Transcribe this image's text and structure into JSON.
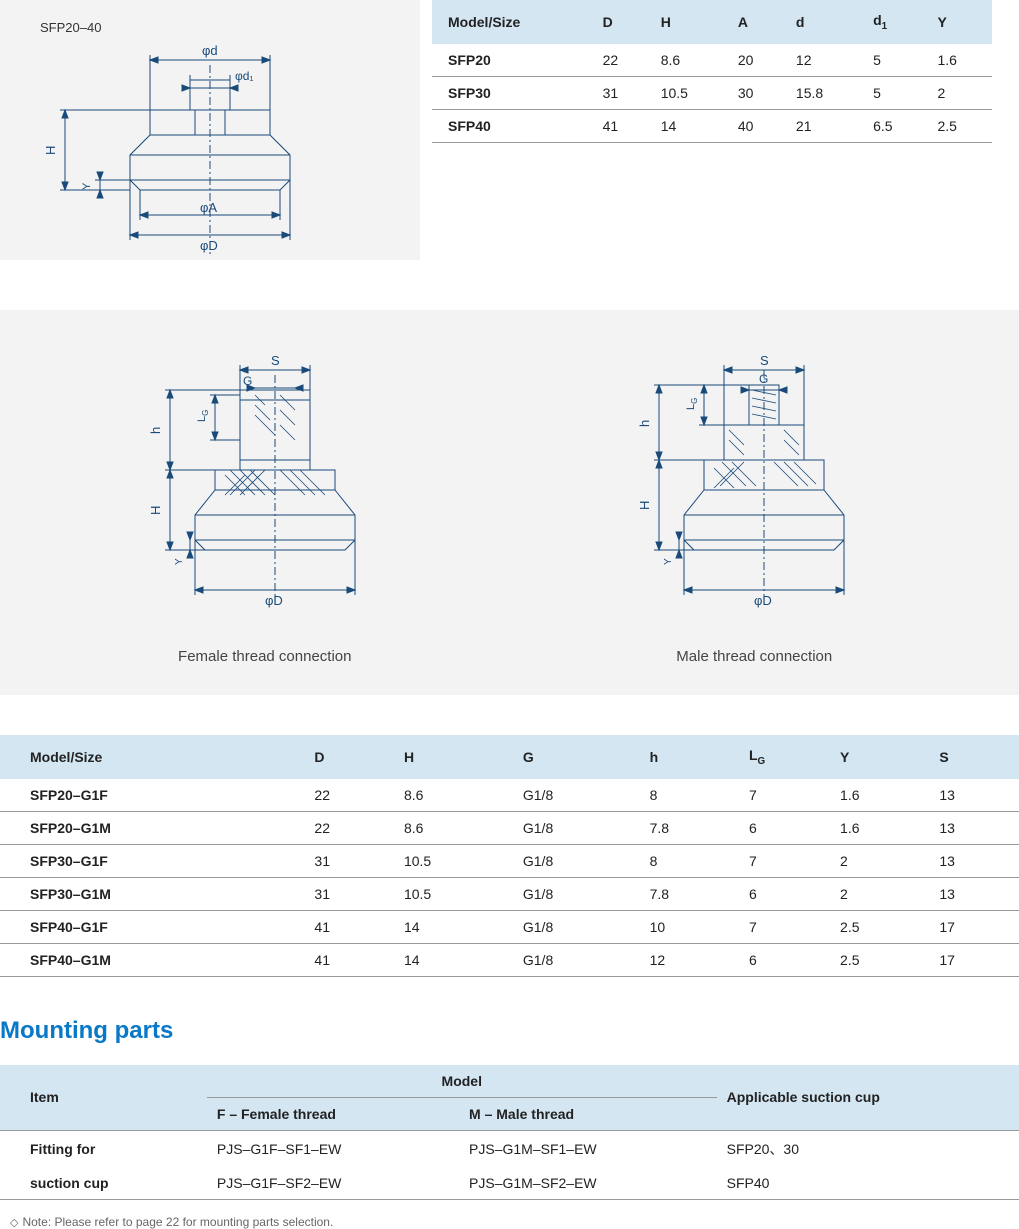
{
  "diagram1": {
    "label": "SFP20–40",
    "dims": {
      "d": "φd",
      "d1": "φd₁",
      "H": "H",
      "Y": "Y",
      "A": "φA",
      "D": "φD"
    },
    "stroke": "#194a7a",
    "bg": "#f3f3f3"
  },
  "table1": {
    "type": "table",
    "header_bg": "#d3e6f2",
    "columns": [
      "Model/Size",
      "D",
      "H",
      "A",
      "d",
      "d₁",
      "Y"
    ],
    "rows": [
      [
        "SFP20",
        "22",
        "8.6",
        "20",
        "12",
        "5",
        "1.6"
      ],
      [
        "SFP30",
        "31",
        "10.5",
        "30",
        "15.8",
        "5",
        "2"
      ],
      [
        "SFP40",
        "41",
        "14",
        "40",
        "21",
        "6.5",
        "2.5"
      ]
    ]
  },
  "diagram2": {
    "female_caption": "Female thread connection",
    "male_caption": "Male thread connection",
    "dims": {
      "S": "S",
      "G": "G",
      "LG": "L",
      "LGsub": "G",
      "h": "h",
      "H": "H",
      "Y": "Y",
      "D": "φD"
    },
    "stroke": "#194a7a"
  },
  "table2": {
    "type": "table",
    "header_bg": "#d3e6f2",
    "columns": [
      "Model/Size",
      "D",
      "H",
      "G",
      "h",
      "L_G",
      "Y",
      "S"
    ],
    "rows": [
      [
        "SFP20–G1F",
        "22",
        "8.6",
        "G1/8",
        "8",
        "7",
        "1.6",
        "13"
      ],
      [
        "SFP20–G1M",
        "22",
        "8.6",
        "G1/8",
        "7.8",
        "6",
        "1.6",
        "13"
      ],
      [
        "SFP30–G1F",
        "31",
        "10.5",
        "G1/8",
        "8",
        "7",
        "2",
        "13"
      ],
      [
        "SFP30–G1M",
        " 31",
        "10.5",
        "G1/8",
        "7.8",
        "6",
        "2",
        "13"
      ],
      [
        "SFP40–G1F",
        "41",
        "14",
        "G1/8",
        "10",
        "7",
        "2.5",
        "17"
      ],
      [
        "SFP40–G1M",
        "41",
        "14",
        "G1/8",
        "12",
        "6",
        "2.5",
        "17"
      ]
    ]
  },
  "section_title": "Mounting parts",
  "table3": {
    "type": "table",
    "header_bg": "#d3e6f2",
    "item_label": "Item",
    "model_label": "Model",
    "f_label": "F – Female thread",
    "m_label": "M – Male thread",
    "app_label": "Applicable suction cup",
    "item_text_1": "Fitting for",
    "item_text_2": "suction cup",
    "rows": [
      [
        "PJS–G1F–SF1–EW",
        "PJS–G1M–SF1–EW",
        "SFP20、30"
      ],
      [
        "PJS–G1F–SF2–EW",
        "PJS–G1M–SF2–EW",
        "SFP40"
      ]
    ]
  },
  "note": "Note: Please refer to page 22 for mounting parts selection.",
  "title_color": "#0878c7"
}
